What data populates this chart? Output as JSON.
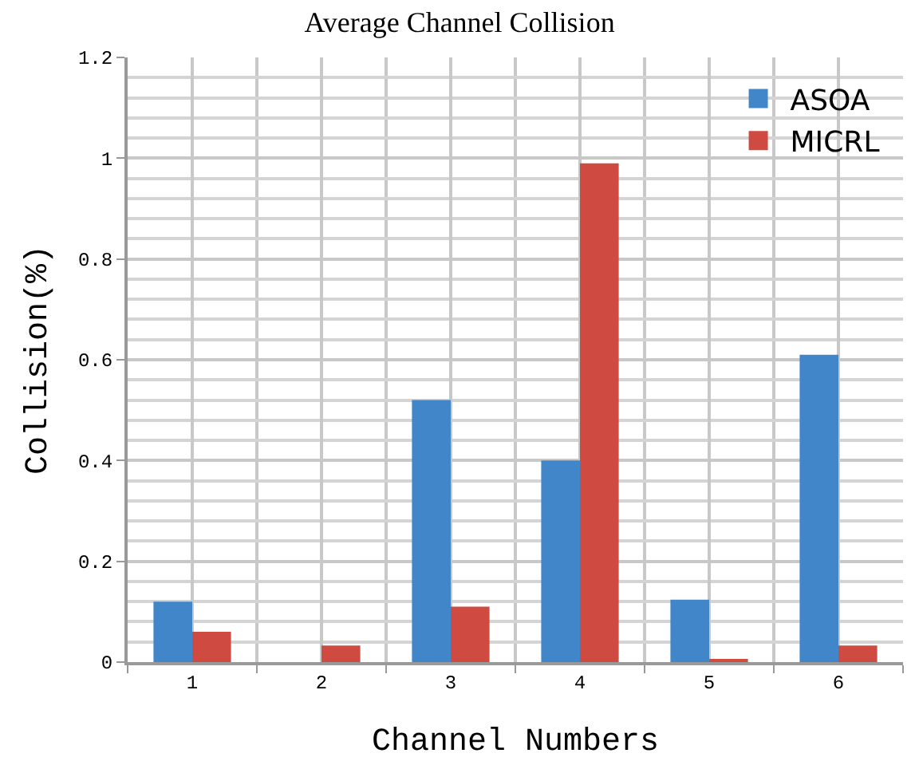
{
  "chart_data": {
    "type": "bar",
    "title": "Average Channel Collision",
    "xlabel": "Channel Numbers",
    "ylabel": "Collision(%)",
    "categories": [
      "1",
      "2",
      "3",
      "4",
      "5",
      "6"
    ],
    "series": [
      {
        "name": "ASOA",
        "color": "#4186c8",
        "values": [
          0.12,
          0,
          0.52,
          0.4,
          0.124,
          0.61
        ]
      },
      {
        "name": "MICRL",
        "color": "#cf4a40",
        "values": [
          0.06,
          0.033,
          0.11,
          0.99,
          0.005,
          0.033
        ]
      }
    ],
    "ylim": [
      0,
      1.2
    ],
    "yticks": [
      0,
      0.2,
      0.4,
      0.6,
      0.8,
      1,
      1.2
    ],
    "grid": true,
    "legend": "top right"
  }
}
